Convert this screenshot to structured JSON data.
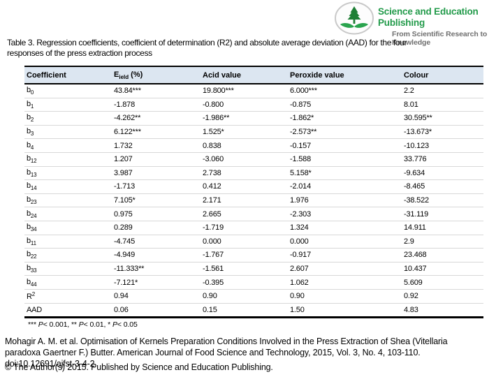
{
  "logo": {
    "name": "Science and Education Publishing",
    "tagline": "From Scientific Research to Knowledge",
    "brand_green": "#239b4b",
    "icon_tree_green": "#1e7f35",
    "icon_book_green": "#2aa44e",
    "tagline_gray": "#707070",
    "icon": "tree-book-logo-icon"
  },
  "title_lines": [
    "Table 3. Regression coefficients, coefficient of determination (R2) and absolute average deviation (AAD) for the four",
    "responses of the press extraction process"
  ],
  "table": {
    "header_bg": "#dce6f1",
    "columns": [
      [
        {
          "t": "Coefficient"
        }
      ],
      [
        {
          "t": "E"
        },
        {
          "t": "ield",
          "sub": true
        },
        {
          "t": " (%)"
        }
      ],
      [
        {
          "t": "Acid value"
        }
      ],
      [
        {
          "t": "Peroxide value"
        }
      ],
      [
        {
          "t": "Colour"
        }
      ]
    ],
    "rows": [
      {
        "label": [
          {
            "t": "b"
          },
          {
            "t": "0",
            "sub": true
          }
        ],
        "values": [
          "43.84***",
          "19.800***",
          "6.000***",
          "2.2"
        ]
      },
      {
        "label": [
          {
            "t": "b"
          },
          {
            "t": "1",
            "sub": true
          }
        ],
        "values": [
          "-1.878",
          "-0.800",
          "-0.875",
          "8.01"
        ]
      },
      {
        "label": [
          {
            "t": "b"
          },
          {
            "t": "2",
            "sub": true
          }
        ],
        "values": [
          "-4.262**",
          "-1.986**",
          "-1.862*",
          "30.595**"
        ]
      },
      {
        "label": [
          {
            "t": "b"
          },
          {
            "t": "3",
            "sub": true
          }
        ],
        "values": [
          "6.122***",
          "1.525*",
          "-2.573**",
          "-13.673*"
        ]
      },
      {
        "label": [
          {
            "t": "b"
          },
          {
            "t": "4",
            "sub": true
          }
        ],
        "values": [
          "1.732",
          "0.838",
          "-0.157",
          "-10.123"
        ]
      },
      {
        "label": [
          {
            "t": "b"
          },
          {
            "t": "12",
            "sub": true
          }
        ],
        "values": [
          "1.207",
          "-3.060",
          "-1.588",
          "33.776"
        ]
      },
      {
        "label": [
          {
            "t": "b"
          },
          {
            "t": "13",
            "sub": true
          }
        ],
        "values": [
          "3.987",
          "2.738",
          "5.158*",
          "-9.634"
        ]
      },
      {
        "label": [
          {
            "t": "b"
          },
          {
            "t": "14",
            "sub": true
          }
        ],
        "values": [
          "-1.713",
          "0.412",
          "-2.014",
          "-8.465"
        ]
      },
      {
        "label": [
          {
            "t": "b"
          },
          {
            "t": "23",
            "sub": true
          }
        ],
        "values": [
          "7.105*",
          "2.171",
          "1.976",
          "-38.522"
        ]
      },
      {
        "label": [
          {
            "t": "b"
          },
          {
            "t": "24",
            "sub": true
          }
        ],
        "values": [
          "0.975",
          "2.665",
          "-2.303",
          "-31.119"
        ]
      },
      {
        "label": [
          {
            "t": "b"
          },
          {
            "t": "34",
            "sub": true
          }
        ],
        "values": [
          "0.289",
          "-1.719",
          "1.324",
          "14.911"
        ]
      },
      {
        "label": [
          {
            "t": "b"
          },
          {
            "t": "11",
            "sub": true
          }
        ],
        "values": [
          "-4.745",
          "0.000",
          "0.000",
          "2.9"
        ]
      },
      {
        "label": [
          {
            "t": "b"
          },
          {
            "t": "22",
            "sub": true
          }
        ],
        "values": [
          "-4.949",
          "-1.767",
          "-0.917",
          "23.468"
        ]
      },
      {
        "label": [
          {
            "t": "b"
          },
          {
            "t": "33",
            "sub": true
          }
        ],
        "values": [
          "-11.333**",
          "-1.561",
          "2.607",
          "10.437"
        ]
      },
      {
        "label": [
          {
            "t": "b"
          },
          {
            "t": "44",
            "sub": true
          }
        ],
        "values": [
          "-7.121*",
          "-0.395",
          "1.062",
          "5.609"
        ]
      },
      {
        "label": [
          {
            "t": "R"
          },
          {
            "t": "2",
            "sup": true
          }
        ],
        "values": [
          "0.94",
          "0.90",
          "0.90",
          "0.92"
        ]
      },
      {
        "label": [
          {
            "t": "AAD"
          }
        ],
        "values": [
          "0.06",
          "0.15",
          "1.50",
          "4.83"
        ]
      }
    ]
  },
  "footnote_segments": [
    {
      "t": "*** "
    },
    {
      "t": "P",
      "i": true
    },
    {
      "t": "< 0.001, ** "
    },
    {
      "t": "P",
      "i": true
    },
    {
      "t": "< 0.01, * "
    },
    {
      "t": "P",
      "i": true
    },
    {
      "t": "< 0.05"
    }
  ],
  "citation": {
    "lines": [
      "Mohagir A. M. et al. Optimisation of Kernels Preparation Conditions Involved in the Press Extraction of Shea (Vitellaria",
      "paradoxa Gaertner F.) Butter. American Journal of Food Science and Technology, 2015, Vol. 3, No. 4, 103-110.",
      "doi:10.12691/ajfst-3-4-2"
    ],
    "copyright": "© The Author(s) 2015. Published by Science and Education Publishing."
  }
}
